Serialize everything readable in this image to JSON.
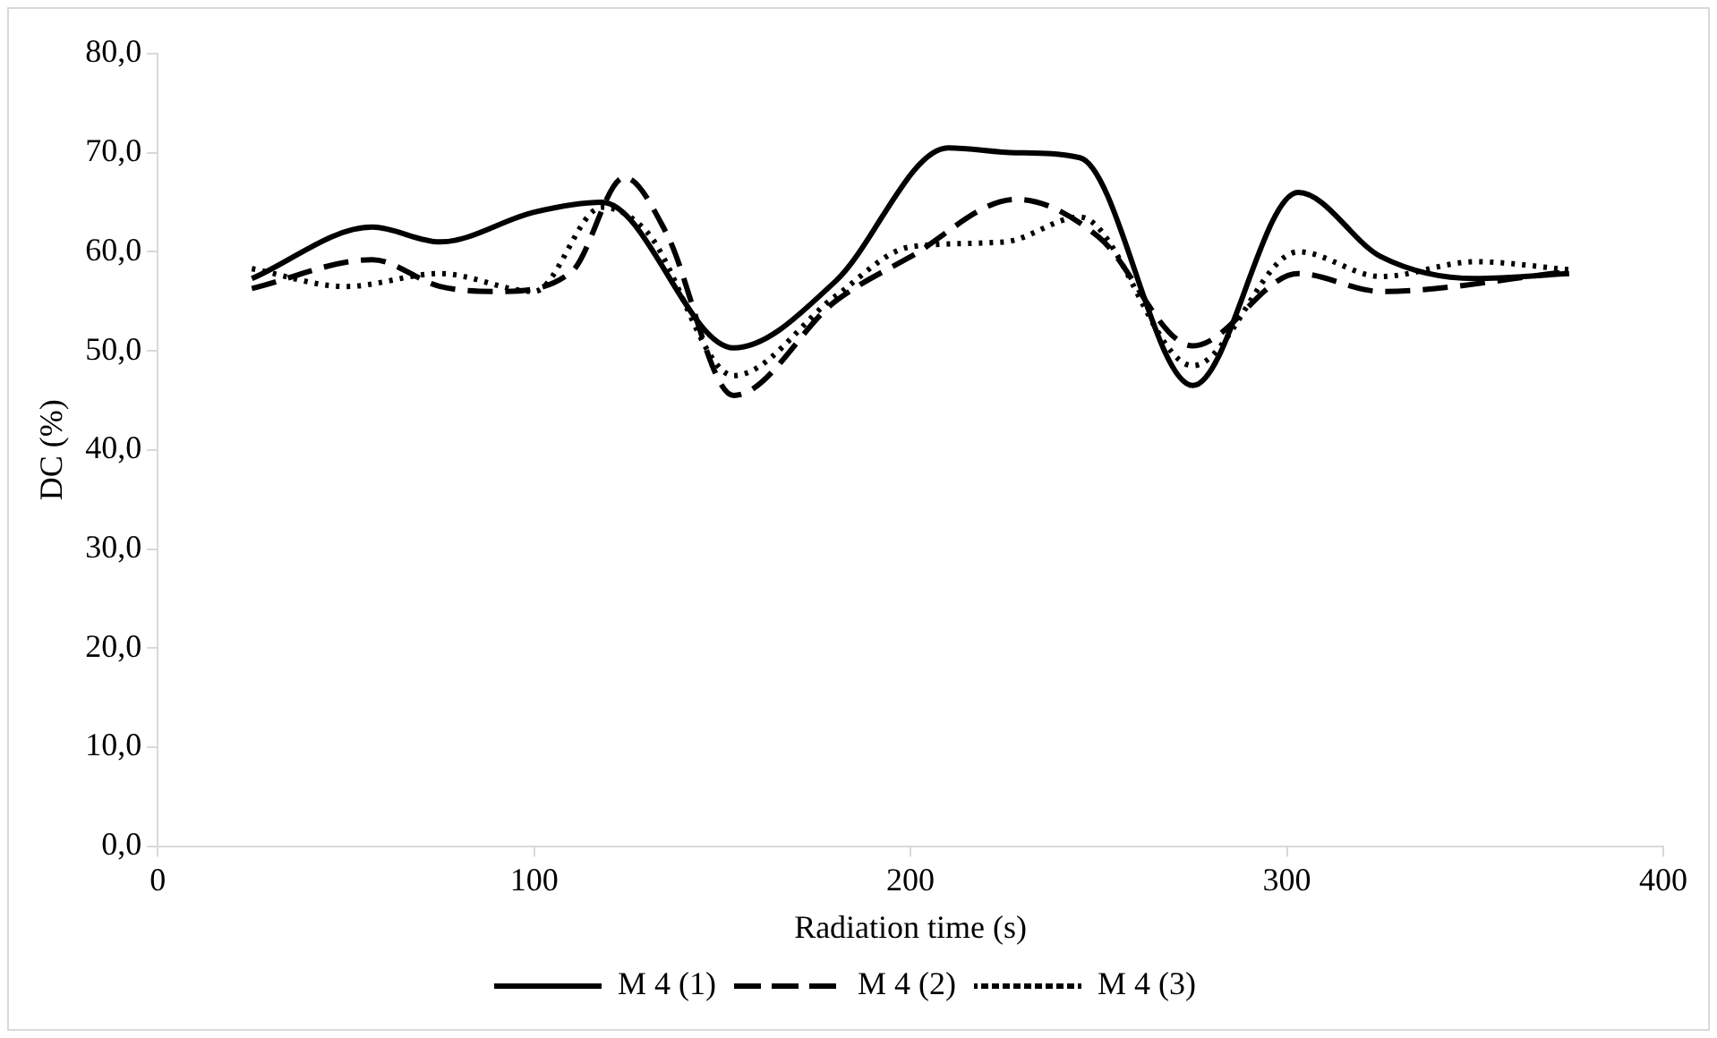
{
  "chart_data": {
    "type": "line",
    "xlabel": "Radiation time (s)",
    "ylabel": "DC (%)",
    "xlim": [
      0,
      400
    ],
    "xticks": [
      0,
      100,
      200,
      300,
      400
    ],
    "ylim": [
      0,
      80
    ],
    "yticks": [
      {
        "value": 0,
        "label": "0,0"
      },
      {
        "value": 10,
        "label": "10,0"
      },
      {
        "value": 20,
        "label": "20,0"
      },
      {
        "value": 30,
        "label": "30,0"
      },
      {
        "value": 40,
        "label": "40,0"
      },
      {
        "value": 50,
        "label": "50,0"
      },
      {
        "value": 60,
        "label": "60,0"
      },
      {
        "value": 70,
        "label": "70,0"
      },
      {
        "value": 80,
        "label": "80,0"
      }
    ],
    "grid": false,
    "legend": "bottom",
    "marker": "none",
    "series": [
      {
        "name": "M 4 (1)",
        "color": "#000000",
        "line_style": "solid",
        "x": [
          25,
          57,
          75,
          100,
          118,
          153,
          180,
          210,
          228,
          245,
          275,
          303,
          325,
          350,
          375
        ],
        "values": [
          57.3,
          62.5,
          61,
          64,
          65,
          50.3,
          57,
          70.5,
          70,
          69.5,
          46.5,
          66,
          59.5,
          57.3,
          57.8
        ]
      },
      {
        "name": "M 4 (2)",
        "color": "#000000",
        "line_style": "dashed",
        "x": [
          25,
          57,
          75,
          90,
          110,
          124,
          135,
          153,
          180,
          200,
          228,
          250,
          275,
          303,
          325,
          375
        ],
        "values": [
          56.3,
          59.2,
          56.5,
          56,
          58,
          67.5,
          62,
          45.5,
          55,
          59.5,
          65.3,
          61.5,
          50.5,
          57.8,
          56,
          58
        ]
      },
      {
        "name": "M 4 (3)",
        "color": "#000000",
        "line_style": "dotted",
        "x": [
          25,
          50,
          75,
          100,
          118,
          130,
          153,
          180,
          200,
          225,
          245,
          275,
          303,
          325,
          350,
          375
        ],
        "values": [
          58.3,
          56.5,
          57.8,
          56,
          64.5,
          62,
          47.5,
          55.5,
          60.5,
          61,
          63.5,
          48.5,
          60,
          57.5,
          59,
          58.2
        ]
      }
    ]
  }
}
